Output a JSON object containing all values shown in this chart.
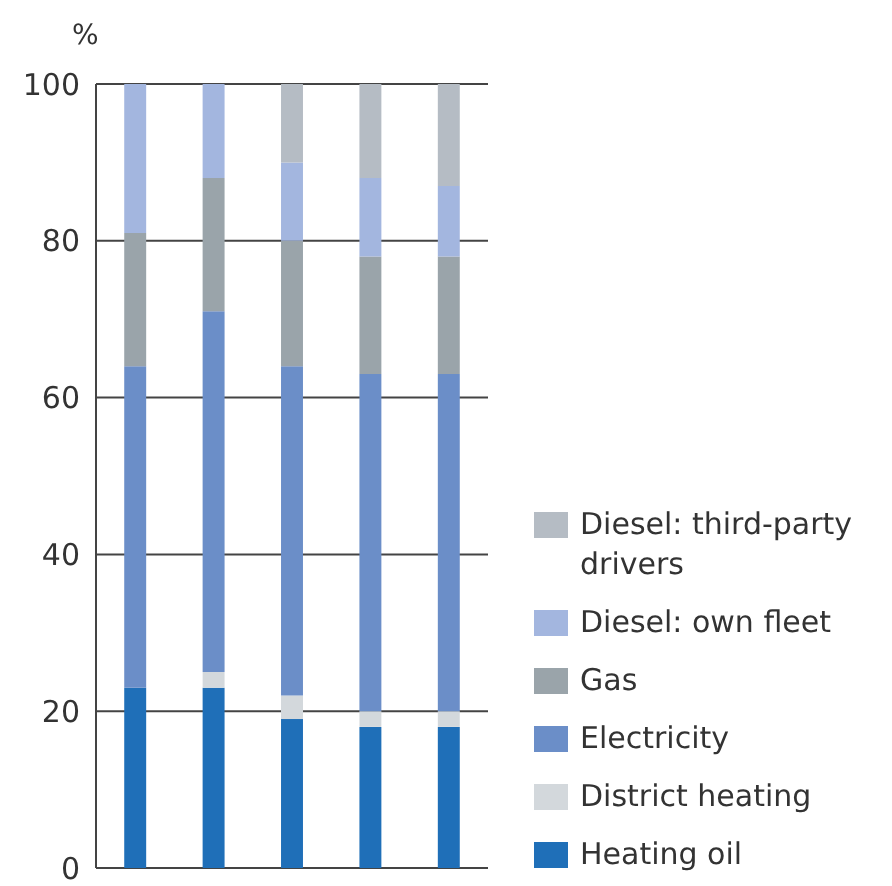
{
  "chart_data": {
    "type": "bar",
    "stacked": true,
    "ylabel": "%",
    "categories": [
      null,
      null,
      null,
      null,
      null
    ],
    "series": [
      {
        "name": "Heating oil",
        "color": "#1f6fb8",
        "values": [
          23,
          23,
          19,
          18,
          18
        ]
      },
      {
        "name": "District heating",
        "color": "#d3d8dc",
        "values": [
          0,
          2,
          3,
          2,
          2
        ]
      },
      {
        "name": "Electricity",
        "color": "#6b8ec8",
        "values": [
          41,
          46,
          42,
          43,
          43
        ]
      },
      {
        "name": "Gas",
        "color": "#9aa4aa",
        "values": [
          17,
          17,
          16,
          15,
          15
        ]
      },
      {
        "name": "Diesel: own fleet",
        "color": "#a3b6df",
        "values": [
          19,
          12,
          10,
          10,
          9
        ]
      },
      {
        "name": "Diesel: third-party drivers",
        "color": "#b5bcc4",
        "values": [
          0,
          0,
          10,
          12,
          13
        ]
      }
    ],
    "ylim": [
      0,
      100
    ],
    "yticks": [
      0,
      20,
      40,
      60,
      80,
      100
    ],
    "grid": "y",
    "legend": "right",
    "tick_labels": "y"
  }
}
